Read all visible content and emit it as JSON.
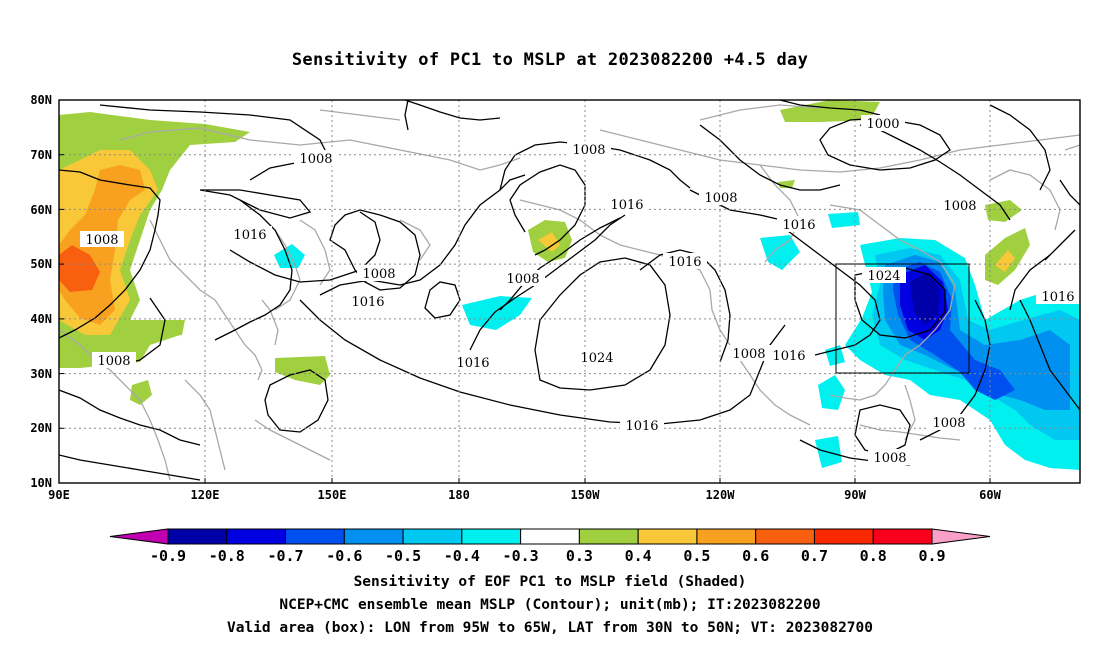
{
  "title": "Sensitivity of PC1 to MSLP at 2023082200 +4.5 day",
  "lat_ticks": [
    "80N",
    "70N",
    "60N",
    "50N",
    "40N",
    "30N",
    "20N",
    "10N"
  ],
  "lon_ticks": [
    "90E",
    "120E",
    "150E",
    "180",
    "150W",
    "120W",
    "90W",
    "60W"
  ],
  "contour_labels": [
    "1000",
    "1008",
    "1016",
    "1024"
  ],
  "box": {
    "lon_west": "95W",
    "lon_east": "65W",
    "lat_south": "30N",
    "lat_north": "50N"
  },
  "colorbar": {
    "labels": [
      "-0.9",
      "-0.8",
      "-0.7",
      "-0.6",
      "-0.5",
      "-0.4",
      "-0.3",
      "0.3",
      "0.4",
      "0.5",
      "0.6",
      "0.7",
      "0.8",
      "0.9"
    ],
    "colors": [
      "#c000b0",
      "#0000a8",
      "#0000e0",
      "#0050f0",
      "#0090f0",
      "#00c8f0",
      "#00f0f0",
      "#ffffff",
      "#a0d040",
      "#f8c838",
      "#f8a020",
      "#f86010",
      "#f82800",
      "#f8001c",
      "#f8a0c8"
    ]
  },
  "captions": {
    "line1": "Sensitivity of EOF PC1 to MSLP field (Shaded)",
    "line2": "NCEP+CMC ensemble mean MSLP (Contour); unit(mb); IT:2023082200",
    "line3": "Valid area (box): LON from 95W to 65W, LAT from 30N to 50N; VT: 2023082700"
  }
}
